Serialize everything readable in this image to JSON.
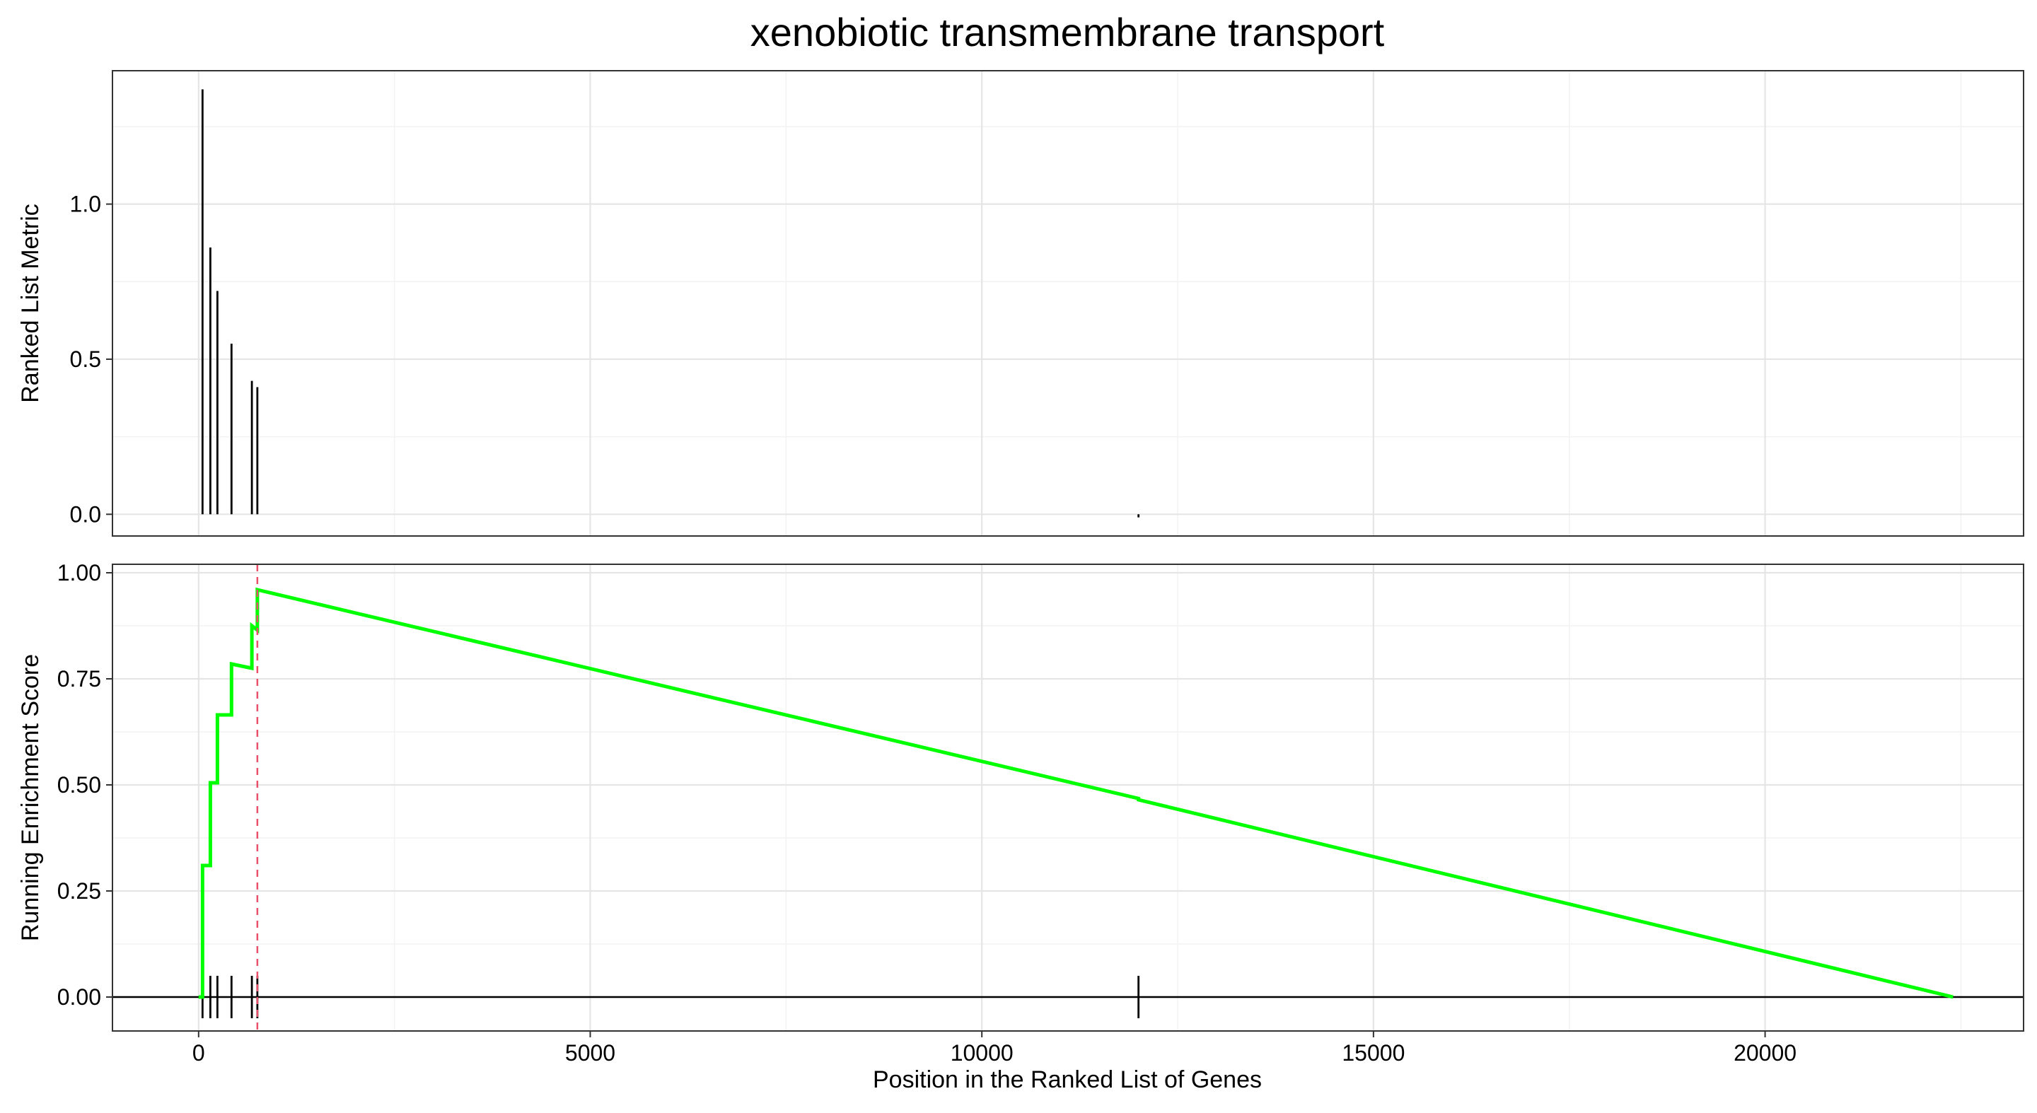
{
  "chart_data": {
    "type": "line",
    "title": "xenobiotic transmembrane transport",
    "xlabel": "Position in the Ranked List of Genes",
    "xlim": [
      -1100,
      23300
    ],
    "x_ticks": [
      {
        "value": 0,
        "label": "0"
      },
      {
        "value": 5000,
        "label": "5000"
      },
      {
        "value": 10000,
        "label": "10000"
      },
      {
        "value": 15000,
        "label": "15000"
      },
      {
        "value": 20000,
        "label": "20000"
      }
    ],
    "grid": true,
    "panels": {
      "top": {
        "ylabel": "Ranked List Metric",
        "ylim": [
          -0.07,
          1.43
        ],
        "y_ticks": [
          {
            "value": 0.0,
            "label": "0.0"
          },
          {
            "value": 0.5,
            "label": "0.5"
          },
          {
            "value": 1.0,
            "label": "1.0"
          }
        ],
        "bars": [
          {
            "x": 50,
            "y": 1.37
          },
          {
            "x": 150,
            "y": 0.86
          },
          {
            "x": 240,
            "y": 0.72
          },
          {
            "x": 420,
            "y": 0.55
          },
          {
            "x": 680,
            "y": 0.43
          },
          {
            "x": 750,
            "y": 0.41
          },
          {
            "x": 12000,
            "y": -0.01
          }
        ]
      },
      "bottom": {
        "ylabel": "Running Enrichment Score",
        "ylim": [
          -0.08,
          1.02
        ],
        "y_ticks": [
          {
            "value": 0.0,
            "label": "0.00"
          },
          {
            "value": 0.25,
            "label": "0.25"
          },
          {
            "value": 0.5,
            "label": "0.50"
          },
          {
            "value": 0.75,
            "label": "0.75"
          },
          {
            "value": 1.0,
            "label": "1.00"
          }
        ],
        "series": [
          {
            "color": "#00ff00",
            "x": [
              0,
              50,
              50,
              150,
              150,
              240,
              240,
              420,
              420,
              680,
              680,
              750,
              750,
              12000,
              12000,
              22400
            ],
            "y": [
              0,
              0,
              0.31,
              0.31,
              0.505,
              0.505,
              0.665,
              0.665,
              0.785,
              0.775,
              0.875,
              0.865,
              0.96,
              0.468,
              0.465,
              0
            ]
          }
        ],
        "gene_hits": [
          50,
          150,
          240,
          420,
          680,
          750,
          12000
        ],
        "hit_tick_half_height": 0.05,
        "max_es_x": 750,
        "max_es_color": "#e8506c"
      }
    }
  }
}
